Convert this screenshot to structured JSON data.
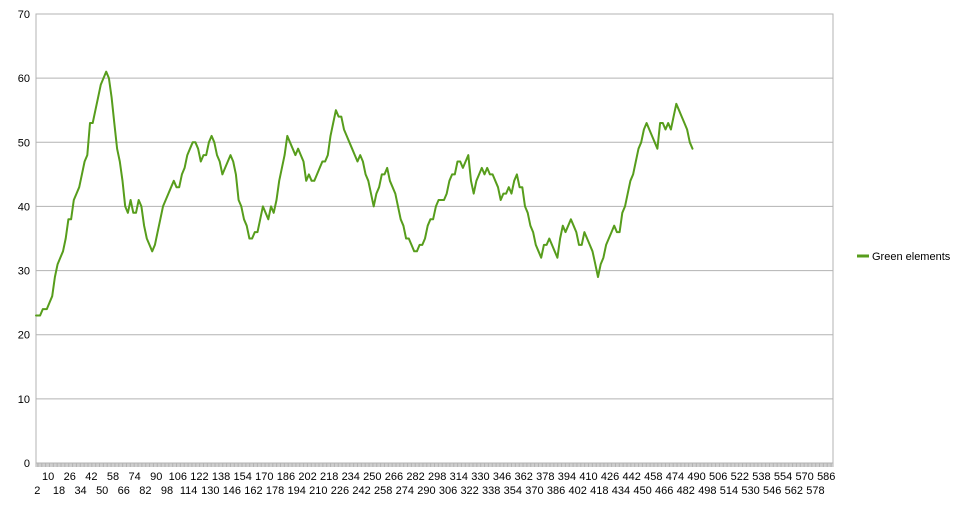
{
  "chart_data": {
    "type": "line",
    "xlim": [
      1,
      591
    ],
    "ylim": [
      0,
      70
    ],
    "yticks": [
      0,
      10,
      20,
      30,
      40,
      50,
      60,
      70
    ],
    "xticks_row1": [
      10,
      26,
      42,
      58,
      74,
      90,
      106,
      122,
      138,
      154,
      170,
      186,
      202,
      218,
      234,
      250,
      266,
      282,
      298,
      314,
      330,
      346,
      362,
      378,
      394,
      410,
      426,
      442,
      458,
      474,
      490,
      506,
      522,
      538,
      554,
      570,
      586
    ],
    "xticks_row2": [
      2,
      18,
      34,
      50,
      66,
      82,
      98,
      114,
      130,
      146,
      162,
      178,
      194,
      210,
      226,
      242,
      258,
      274,
      290,
      306,
      322,
      338,
      354,
      370,
      386,
      402,
      418,
      434,
      450,
      466,
      482,
      498,
      514,
      530,
      546,
      562,
      578
    ],
    "grid": true,
    "legend_position": "right",
    "series": [
      {
        "name": "Green elements",
        "color": "#579d1c",
        "points": [
          [
            1,
            23
          ],
          [
            4,
            23
          ],
          [
            6,
            24
          ],
          [
            9,
            24
          ],
          [
            11,
            25
          ],
          [
            13,
            26
          ],
          [
            15,
            29
          ],
          [
            17,
            31
          ],
          [
            19,
            32
          ],
          [
            21,
            33
          ],
          [
            23,
            35
          ],
          [
            25,
            38
          ],
          [
            27,
            38
          ],
          [
            29,
            41
          ],
          [
            31,
            42
          ],
          [
            33,
            43
          ],
          [
            35,
            45
          ],
          [
            37,
            47
          ],
          [
            39,
            48
          ],
          [
            41,
            53
          ],
          [
            43,
            53
          ],
          [
            45,
            55
          ],
          [
            47,
            57
          ],
          [
            49,
            59
          ],
          [
            51,
            60
          ],
          [
            53,
            61
          ],
          [
            55,
            60
          ],
          [
            57,
            57
          ],
          [
            59,
            53
          ],
          [
            61,
            49
          ],
          [
            63,
            47
          ],
          [
            65,
            44
          ],
          [
            67,
            40
          ],
          [
            69,
            39
          ],
          [
            71,
            41
          ],
          [
            73,
            39
          ],
          [
            75,
            39
          ],
          [
            77,
            41
          ],
          [
            79,
            40
          ],
          [
            81,
            37
          ],
          [
            83,
            35
          ],
          [
            85,
            34
          ],
          [
            87,
            33
          ],
          [
            89,
            34
          ],
          [
            91,
            36
          ],
          [
            93,
            38
          ],
          [
            95,
            40
          ],
          [
            97,
            41
          ],
          [
            99,
            42
          ],
          [
            101,
            43
          ],
          [
            103,
            44
          ],
          [
            105,
            43
          ],
          [
            107,
            43
          ],
          [
            109,
            45
          ],
          [
            111,
            46
          ],
          [
            113,
            48
          ],
          [
            115,
            49
          ],
          [
            117,
            50
          ],
          [
            119,
            50
          ],
          [
            121,
            49
          ],
          [
            123,
            47
          ],
          [
            125,
            48
          ],
          [
            127,
            48
          ],
          [
            129,
            50
          ],
          [
            131,
            51
          ],
          [
            133,
            50
          ],
          [
            135,
            48
          ],
          [
            137,
            47
          ],
          [
            139,
            45
          ],
          [
            141,
            46
          ],
          [
            143,
            47
          ],
          [
            145,
            48
          ],
          [
            147,
            47
          ],
          [
            149,
            45
          ],
          [
            151,
            41
          ],
          [
            153,
            40
          ],
          [
            155,
            38
          ],
          [
            157,
            37
          ],
          [
            159,
            35
          ],
          [
            161,
            35
          ],
          [
            163,
            36
          ],
          [
            165,
            36
          ],
          [
            167,
            38
          ],
          [
            169,
            40
          ],
          [
            171,
            39
          ],
          [
            173,
            38
          ],
          [
            175,
            40
          ],
          [
            177,
            39
          ],
          [
            179,
            41
          ],
          [
            181,
            44
          ],
          [
            183,
            46
          ],
          [
            185,
            48
          ],
          [
            187,
            51
          ],
          [
            189,
            50
          ],
          [
            191,
            49
          ],
          [
            193,
            48
          ],
          [
            195,
            49
          ],
          [
            197,
            48
          ],
          [
            199,
            47
          ],
          [
            201,
            44
          ],
          [
            203,
            45
          ],
          [
            205,
            44
          ],
          [
            207,
            44
          ],
          [
            209,
            45
          ],
          [
            211,
            46
          ],
          [
            213,
            47
          ],
          [
            215,
            47
          ],
          [
            217,
            48
          ],
          [
            219,
            51
          ],
          [
            221,
            53
          ],
          [
            223,
            55
          ],
          [
            225,
            54
          ],
          [
            227,
            54
          ],
          [
            229,
            52
          ],
          [
            231,
            51
          ],
          [
            233,
            50
          ],
          [
            235,
            49
          ],
          [
            237,
            48
          ],
          [
            239,
            47
          ],
          [
            241,
            48
          ],
          [
            243,
            47
          ],
          [
            245,
            45
          ],
          [
            247,
            44
          ],
          [
            249,
            42
          ],
          [
            251,
            40
          ],
          [
            253,
            42
          ],
          [
            255,
            43
          ],
          [
            257,
            45
          ],
          [
            259,
            45
          ],
          [
            261,
            46
          ],
          [
            263,
            44
          ],
          [
            265,
            43
          ],
          [
            267,
            42
          ],
          [
            269,
            40
          ],
          [
            271,
            38
          ],
          [
            273,
            37
          ],
          [
            275,
            35
          ],
          [
            277,
            35
          ],
          [
            279,
            34
          ],
          [
            281,
            33
          ],
          [
            283,
            33
          ],
          [
            285,
            34
          ],
          [
            287,
            34
          ],
          [
            289,
            35
          ],
          [
            291,
            37
          ],
          [
            293,
            38
          ],
          [
            295,
            38
          ],
          [
            297,
            40
          ],
          [
            299,
            41
          ],
          [
            301,
            41
          ],
          [
            303,
            41
          ],
          [
            305,
            42
          ],
          [
            307,
            44
          ],
          [
            309,
            45
          ],
          [
            311,
            45
          ],
          [
            313,
            47
          ],
          [
            315,
            47
          ],
          [
            317,
            46
          ],
          [
            319,
            47
          ],
          [
            321,
            48
          ],
          [
            323,
            44
          ],
          [
            325,
            42
          ],
          [
            327,
            44
          ],
          [
            329,
            45
          ],
          [
            331,
            46
          ],
          [
            333,
            45
          ],
          [
            335,
            46
          ],
          [
            337,
            45
          ],
          [
            339,
            45
          ],
          [
            341,
            44
          ],
          [
            343,
            43
          ],
          [
            345,
            41
          ],
          [
            347,
            42
          ],
          [
            349,
            42
          ],
          [
            351,
            43
          ],
          [
            353,
            42
          ],
          [
            355,
            44
          ],
          [
            357,
            45
          ],
          [
            359,
            43
          ],
          [
            361,
            43
          ],
          [
            363,
            40
          ],
          [
            365,
            39
          ],
          [
            367,
            37
          ],
          [
            369,
            36
          ],
          [
            371,
            34
          ],
          [
            373,
            33
          ],
          [
            375,
            32
          ],
          [
            377,
            34
          ],
          [
            379,
            34
          ],
          [
            381,
            35
          ],
          [
            383,
            34
          ],
          [
            385,
            33
          ],
          [
            387,
            32
          ],
          [
            389,
            35
          ],
          [
            391,
            37
          ],
          [
            393,
            36
          ],
          [
            395,
            37
          ],
          [
            397,
            38
          ],
          [
            399,
            37
          ],
          [
            401,
            36
          ],
          [
            403,
            34
          ],
          [
            405,
            34
          ],
          [
            407,
            36
          ],
          [
            409,
            35
          ],
          [
            411,
            34
          ],
          [
            413,
            33
          ],
          [
            415,
            31
          ],
          [
            417,
            29
          ],
          [
            419,
            31
          ],
          [
            421,
            32
          ],
          [
            423,
            34
          ],
          [
            425,
            35
          ],
          [
            427,
            36
          ],
          [
            429,
            37
          ],
          [
            431,
            36
          ],
          [
            433,
            36
          ],
          [
            435,
            39
          ],
          [
            437,
            40
          ],
          [
            439,
            42
          ],
          [
            441,
            44
          ],
          [
            443,
            45
          ],
          [
            445,
            47
          ],
          [
            447,
            49
          ],
          [
            449,
            50
          ],
          [
            451,
            52
          ],
          [
            453,
            53
          ],
          [
            455,
            52
          ],
          [
            457,
            51
          ],
          [
            459,
            50
          ],
          [
            461,
            49
          ],
          [
            463,
            53
          ],
          [
            465,
            53
          ],
          [
            467,
            52
          ],
          [
            469,
            53
          ],
          [
            471,
            52
          ],
          [
            473,
            54
          ],
          [
            475,
            56
          ],
          [
            477,
            55
          ],
          [
            479,
            54
          ],
          [
            481,
            53
          ],
          [
            483,
            52
          ],
          [
            485,
            50
          ],
          [
            487,
            49
          ]
        ]
      }
    ]
  }
}
